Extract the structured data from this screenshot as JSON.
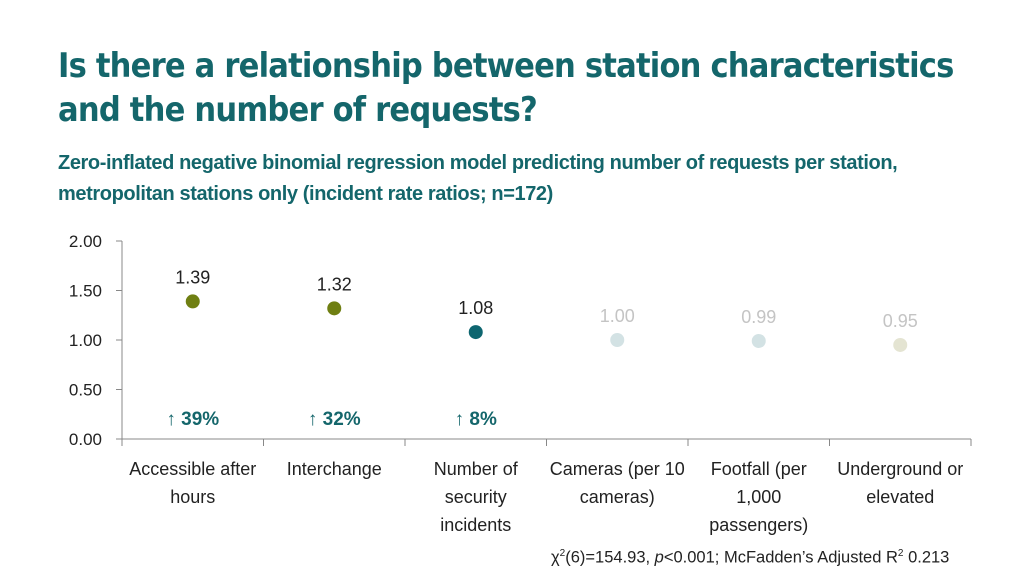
{
  "title": "Is there a relationship between station characteristics and the number of requests?",
  "subtitle": "Zero-inflated negative binomial regression model predicting number of requests per station, metropolitan stations only (incident rate ratios; n=172)",
  "footnote": {
    "chi": "χ",
    "chi_sup": "2",
    "chi_rest": "(6)=154.93, ",
    "p": "p",
    "p_rest": "<0.001; McFadden’s Adjusted R",
    "r_sup": "2",
    "r_rest": " 0.213"
  },
  "chart_data": {
    "type": "scatter",
    "categories": [
      "Accessible after hours",
      "Interchange",
      "Number of security incidents",
      "Cameras (per 10 cameras)",
      "Footfall (per 1,000 passengers)",
      "Underground or elevated"
    ],
    "values": [
      1.39,
      1.32,
      1.08,
      1.0,
      0.99,
      0.95
    ],
    "data_labels": [
      "1.39",
      "1.32",
      "1.08",
      "1.00",
      "0.99",
      "0.95"
    ],
    "point_colors": [
      "#6f7f12",
      "#6f7f12",
      "#0e6670",
      "#d3e2e4",
      "#d3e2e4",
      "#e4e4d2"
    ],
    "label_colors": [
      "#222222",
      "#222222",
      "#222222",
      "#c4c4c4",
      "#c4c4c4",
      "#c4c4c4"
    ],
    "annotations": [
      "↑ 39%",
      "↑ 32%",
      "↑ 8%",
      "",
      "",
      ""
    ],
    "annotation_color": "#14666b",
    "ylim": [
      0,
      2
    ],
    "yticks": [
      "0.00",
      "0.50",
      "1.00",
      "1.50",
      "2.00"
    ],
    "grid": false
  }
}
